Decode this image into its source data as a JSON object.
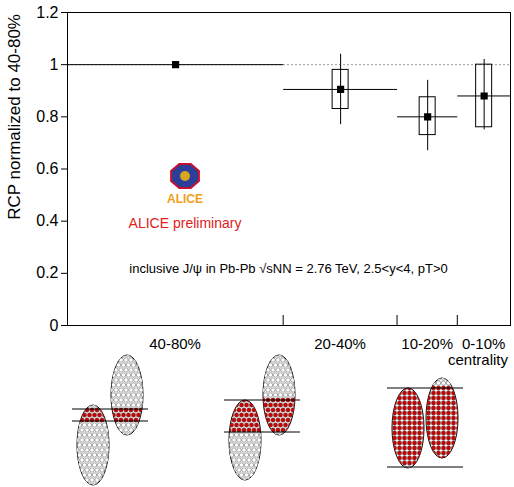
{
  "chart_data": {
    "type": "scatter",
    "ylabel": "RCP normalized to 40-80%",
    "xlabel": "centrality",
    "categories": [
      "40-80%",
      "20-40%",
      "10-20%",
      "0-10%"
    ],
    "x_edges": [
      0,
      48.8,
      74.5,
      88.1,
      100
    ],
    "xlim": [
      0,
      100
    ],
    "values": [
      1.0,
      0.905,
      0.8,
      0.88
    ],
    "stat_low": [
      null,
      0.77,
      0.67,
      0.75
    ],
    "stat_high": [
      null,
      1.04,
      0.94,
      1.02
    ],
    "sys_low": [
      null,
      0.83,
      0.73,
      0.76
    ],
    "sys_high": [
      null,
      0.98,
      0.875,
      1.0
    ],
    "ylim": [
      0,
      1.2
    ],
    "yticks": [
      0,
      0.2,
      0.4,
      0.6,
      0.8,
      1,
      1.2
    ],
    "reference_line": 1,
    "marker": "square",
    "color": "#000000",
    "annotations": [
      "ALICE",
      "ALICE preliminary",
      "inclusive J/ψ in Pb-Pb √sNN = 2.76 TeV, 2.5<y<4, pT>0"
    ]
  }
}
